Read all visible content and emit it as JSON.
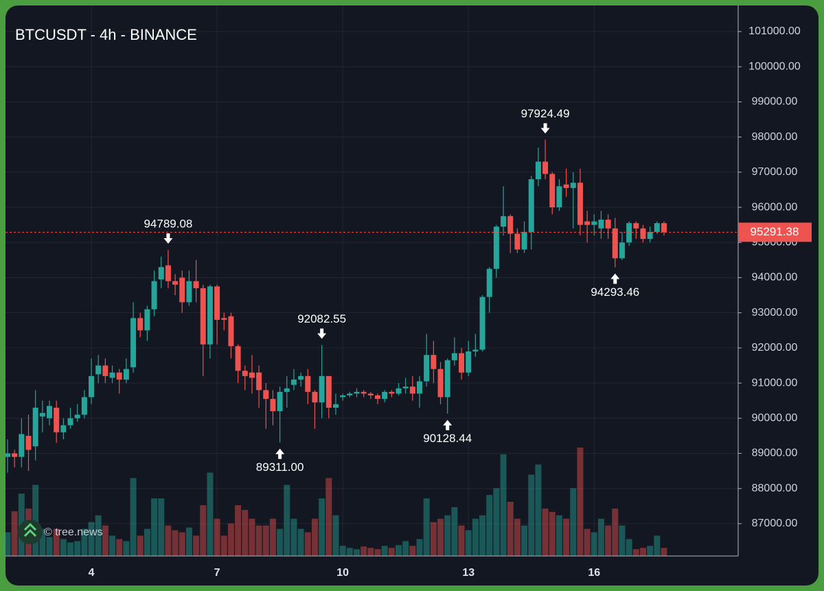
{
  "chart_data": {
    "type": "candlestick",
    "title": "BTCUSDT - 4h - BINANCE",
    "watermark": "© tree.news",
    "up_color": "#26a69a",
    "down_color": "#ef5350",
    "grid": true,
    "categories": [
      null,
      null,
      null,
      null,
      null,
      null,
      null,
      null,
      null,
      null,
      null,
      null,
      "4",
      null,
      null,
      null,
      null,
      null,
      null,
      null,
      null,
      null,
      null,
      null,
      null,
      null,
      null,
      null,
      null,
      null,
      "7",
      null,
      null,
      null,
      null,
      null,
      null,
      null,
      null,
      null,
      null,
      null,
      null,
      null,
      null,
      null,
      null,
      null,
      "10",
      null,
      null,
      null,
      null,
      null,
      null,
      null,
      null,
      null,
      null,
      null,
      null,
      null,
      null,
      null,
      null,
      null,
      "13",
      null,
      null,
      null,
      null,
      null,
      null,
      null,
      null,
      null,
      null,
      null,
      null,
      null,
      null,
      null,
      null,
      null,
      "16",
      null,
      null,
      null,
      null,
      null,
      null,
      null,
      null,
      null,
      null
    ],
    "open": [
      88900,
      89000,
      88900,
      89500,
      89200,
      90050,
      90000,
      90300,
      89600,
      89800,
      90000,
      90100,
      90600,
      91250,
      91500,
      91150,
      91300,
      91100,
      91450,
      92850,
      92500,
      93100,
      93950,
      94350,
      93900,
      94000,
      93300,
      93900,
      93700,
      92100,
      93750,
      92850,
      92900,
      92050,
      91350,
      91300,
      91300,
      90800,
      90550,
      90200,
      90750,
      90950,
      91100,
      91200,
      90750,
      90450,
      91200,
      90300,
      90600,
      90650,
      90700,
      90750,
      90700,
      90650,
      90550,
      90750,
      90700,
      90850,
      90900,
      90700,
      91050,
      91800,
      91400,
      90600,
      91650,
      91850,
      91300,
      91900,
      91950,
      93450,
      94250,
      95450,
      95750,
      95250,
      94800,
      95300,
      96800,
      97300,
      96950,
      96000,
      96650,
      96550,
      96700,
      95600,
      95500,
      95400,
      95650,
      95400,
      94550,
      95000,
      95550,
      95400,
      95100,
      95300,
      95550
    ],
    "high": [
      89400,
      89100,
      90000,
      90100,
      90800,
      90500,
      90500,
      90500,
      90000,
      90300,
      90400,
      90800,
      91700,
      91800,
      91700,
      91500,
      91400,
      91700,
      93300,
      93000,
      93200,
      94200,
      94600,
      94789.08,
      94100,
      94200,
      94200,
      94500,
      93800,
      93800,
      93800,
      93000,
      93000,
      92100,
      91500,
      91800,
      91500,
      91000,
      90800,
      90900,
      91200,
      91400,
      91300,
      91400,
      90800,
      92082.55,
      91200,
      90700,
      90700,
      90750,
      90850,
      90800,
      90750,
      90700,
      90800,
      90800,
      91000,
      91150,
      91200,
      91200,
      92400,
      92200,
      91600,
      91700,
      92300,
      92000,
      92200,
      92400,
      93500,
      94300,
      95500,
      96600,
      95800,
      95400,
      95600,
      96900,
      97700,
      97924.49,
      97000,
      96800,
      97100,
      97000,
      97100,
      95900,
      95800,
      95900,
      95800,
      95700,
      95300,
      95600,
      95600,
      95500,
      95450,
      95600,
      95600
    ],
    "low": [
      88450,
      88600,
      88600,
      88500,
      88800,
      89600,
      89800,
      89300,
      89400,
      89700,
      89900,
      90000,
      90400,
      91000,
      91000,
      91000,
      90700,
      91000,
      91300,
      92300,
      92200,
      92900,
      93700,
      93700,
      93500,
      93000,
      93200,
      93300,
      91200,
      91700,
      92100,
      92500,
      91700,
      91000,
      90800,
      90700,
      90300,
      89700,
      89800,
      89311,
      90300,
      90800,
      90900,
      90400,
      89700,
      90000,
      90000,
      90100,
      90500,
      90600,
      90600,
      90600,
      90550,
      90400,
      90450,
      90600,
      90650,
      90700,
      90500,
      90300,
      90900,
      91000,
      90400,
      90128.44,
      91500,
      91100,
      91200,
      91750,
      91900,
      93000,
      94000,
      95200,
      94700,
      94700,
      94700,
      94800,
      96600,
      96800,
      95800,
      95900,
      96300,
      95400,
      95200,
      95000,
      95200,
      95100,
      95100,
      94293.46,
      94500,
      94900,
      95100,
      95000,
      95000,
      95250,
      95200
    ],
    "close": [
      89000,
      88900,
      89550,
      89100,
      90300,
      90150,
      90350,
      89600,
      89800,
      90000,
      90100,
      90600,
      91200,
      91500,
      91200,
      91300,
      91100,
      91400,
      92850,
      92500,
      93100,
      93900,
      94300,
      93900,
      93800,
      93300,
      93900,
      93700,
      92100,
      93750,
      92800,
      92800,
      92050,
      91350,
      91200,
      91150,
      90800,
      90550,
      90200,
      90750,
      90850,
      91100,
      91200,
      90750,
      90450,
      91200,
      90300,
      90400,
      90650,
      90700,
      90750,
      90700,
      90650,
      90550,
      90750,
      90700,
      90850,
      90900,
      90700,
      91050,
      91800,
      91400,
      90600,
      91650,
      91850,
      91300,
      91900,
      91950,
      93450,
      94250,
      95450,
      95750,
      95250,
      94800,
      95300,
      96800,
      97300,
      96950,
      96000,
      96600,
      96550,
      96700,
      95500,
      95500,
      95600,
      95650,
      95400,
      94550,
      95000,
      95550,
      95400,
      95100,
      95300,
      95550,
      95291.38
    ],
    "volume": [
      35,
      66,
      92,
      70,
      105,
      40,
      28,
      40,
      25,
      20,
      22,
      40,
      50,
      60,
      45,
      30,
      25,
      22,
      115,
      30,
      40,
      85,
      85,
      45,
      38,
      35,
      42,
      30,
      75,
      123,
      55,
      30,
      48,
      75,
      68,
      55,
      45,
      45,
      55,
      40,
      105,
      55,
      40,
      35,
      55,
      85,
      115,
      60,
      15,
      12,
      10,
      14,
      12,
      10,
      15,
      12,
      16,
      22,
      15,
      25,
      85,
      50,
      55,
      60,
      72,
      45,
      38,
      55,
      60,
      90,
      100,
      150,
      80,
      55,
      45,
      120,
      135,
      70,
      65,
      60,
      55,
      100,
      160,
      40,
      35,
      55,
      45,
      70,
      45,
      25,
      10,
      12,
      15,
      30,
      12
    ],
    "ylim": [
      86081,
      101742
    ],
    "yticks": [
      {
        "value": 87000,
        "label": "87000.00"
      },
      {
        "value": 88000,
        "label": "88000.00"
      },
      {
        "value": 89000,
        "label": "89000.00"
      },
      {
        "value": 90000,
        "label": "90000.00"
      },
      {
        "value": 91000,
        "label": "91000.00"
      },
      {
        "value": 92000,
        "label": "92000.00"
      },
      {
        "value": 93000,
        "label": "93000.00"
      },
      {
        "value": 94000,
        "label": "94000.00"
      },
      {
        "value": 95000,
        "label": "95000.00"
      },
      {
        "value": 96000,
        "label": "96000.00"
      },
      {
        "value": 97000,
        "label": "97000.00"
      },
      {
        "value": 98000,
        "label": "98000.00"
      },
      {
        "value": 99000,
        "label": "99000.00"
      },
      {
        "value": 100000,
        "label": "100000.00"
      },
      {
        "value": 101000,
        "label": "101000.00"
      }
    ],
    "annotations": [
      {
        "index": 23,
        "value": 94789.08,
        "label": "94789.08",
        "position": "above"
      },
      {
        "index": 39,
        "value": 89311,
        "label": "89311.00",
        "position": "below"
      },
      {
        "index": 45,
        "value": 92082.55,
        "label": "92082.55",
        "position": "above"
      },
      {
        "index": 63,
        "value": 90128.44,
        "label": "90128.44",
        "position": "below"
      },
      {
        "index": 77,
        "value": 97924.49,
        "label": "97924.49",
        "position": "above"
      },
      {
        "index": 87,
        "value": 94293.46,
        "label": "94293.46",
        "position": "below"
      }
    ],
    "last_price": {
      "value": 95291.38,
      "label": "95291.38"
    }
  }
}
